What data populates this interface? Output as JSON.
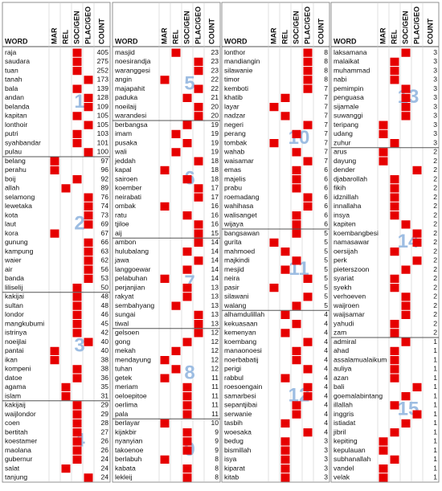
{
  "headers": {
    "word": "WORD",
    "columns": [
      "MAR",
      "REL",
      "SOC/GEN",
      "PLAC/GEO"
    ],
    "count": "COUNT"
  },
  "panels": [
    {
      "groups": [
        {
          "label": 1,
          "rows": [
            [
              "raja",
              405,
              2
            ],
            [
              "saudara",
              275,
              2
            ],
            [
              "tuan",
              252,
              2
            ],
            [
              "tanah",
              173,
              3
            ],
            [
              "bala",
              139,
              2
            ],
            [
              "andan",
              128,
              3
            ],
            [
              "belanda",
              109,
              3
            ],
            [
              "kapitan",
              105,
              2
            ],
            [
              "lonthoir",
              105,
              3
            ],
            [
              "putri",
              103,
              2
            ],
            [
              "syahbandar",
              101,
              2
            ],
            [
              "pulau",
              100,
              3
            ]
          ]
        },
        {
          "label": 2,
          "rows": [
            [
              "belang",
              97,
              0
            ],
            [
              "perahu",
              96,
              0
            ],
            [
              "boij",
              92,
              2
            ],
            [
              "allah",
              89,
              1
            ],
            [
              "selamong",
              76,
              3
            ],
            [
              "lewetaka",
              74,
              3
            ],
            [
              "kota",
              73,
              3
            ],
            [
              "laut",
              69,
              3
            ],
            [
              "kora",
              67,
              0
            ],
            [
              "gunung",
              66,
              3
            ],
            [
              "kampung",
              63,
              3
            ],
            [
              "waier",
              62,
              3
            ],
            [
              "air",
              56,
              3
            ],
            [
              "banda",
              53,
              3
            ],
            [
              "liliselij",
              50,
              2
            ]
          ]
        },
        {
          "label": 3,
          "rows": [
            [
              "kakijai",
              48,
              2
            ],
            [
              "sultan",
              48,
              2
            ],
            [
              "londor",
              46,
              2
            ],
            [
              "mangkubumi",
              45,
              2
            ],
            [
              "istrinya",
              42,
              2
            ],
            [
              "noeijlai",
              40,
              3
            ],
            [
              "pantai",
              40,
              0
            ],
            [
              "ikan",
              38,
              0
            ],
            [
              "kompeni",
              38,
              2
            ],
            [
              "datoe",
              36,
              2
            ],
            [
              "agama",
              35,
              1
            ],
            [
              "islam",
              31,
              1
            ]
          ]
        },
        {
          "label": 4,
          "rows": [
            [
              "kakijaij",
              29,
              2
            ],
            [
              "waijlondor",
              29,
              2
            ],
            [
              "coen",
              28,
              2
            ],
            [
              "bertitah",
              27,
              2
            ],
            [
              "koestamer",
              26,
              2
            ],
            [
              "maolana",
              26,
              2
            ],
            [
              "gubernur",
              24,
              2
            ],
            [
              "salat",
              24,
              1
            ],
            [
              "tanjung",
              24,
              3
            ]
          ]
        }
      ]
    },
    {
      "groups": [
        {
          "label": 5,
          "rows": [
            [
              "masjid",
              23,
              1
            ],
            [
              "noesirandja",
              23,
              3
            ],
            [
              "waranggesi",
              23,
              3
            ],
            [
              "angin",
              22,
              0
            ],
            [
              "majapahit",
              22,
              3
            ],
            [
              "paduka",
              21,
              2
            ],
            [
              "noeilaij",
              20,
              3
            ],
            [
              "warandesi",
              20,
              3
            ]
          ]
        },
        {
          "label": 6,
          "rows": [
            [
              "berbangsa",
              19,
              2
            ],
            [
              "imam",
              19,
              1
            ],
            [
              "pusaka",
              19,
              2
            ],
            [
              "wali",
              19,
              1
            ],
            [
              "jeddah",
              18,
              3
            ],
            [
              "kapal",
              18,
              0
            ],
            [
              "sairoen",
              18,
              2
            ],
            [
              "koember",
              17,
              3
            ],
            [
              "neirabati",
              17,
              3
            ],
            [
              "ombak",
              16,
              0
            ],
            [
              "ratu",
              16,
              2
            ],
            [
              "tjiloe",
              16,
              3
            ],
            [
              "aij",
              15,
              3
            ]
          ]
        },
        {
          "label": 7,
          "rows": [
            [
              "ambon",
              14,
              3
            ],
            [
              "hulubalang",
              14,
              2
            ],
            [
              "jawa",
              14,
              3
            ],
            [
              "langgoewar",
              14,
              2
            ],
            [
              "pelabuhan",
              14,
              0
            ],
            [
              "perjanjian",
              13,
              2
            ],
            [
              "rakyat",
              13,
              2
            ],
            [
              "sembahyang",
              13,
              1
            ],
            [
              "sungai",
              13,
              3
            ],
            [
              "tiwal",
              13,
              3
            ]
          ]
        },
        {
          "label": 8,
          "rows": [
            [
              "gelsoen",
              12,
              3
            ],
            [
              "gong",
              12,
              2
            ],
            [
              "mekah",
              12,
              1
            ],
            [
              "mendayung",
              12,
              0
            ],
            [
              "tuhan",
              12,
              1
            ],
            [
              "getek",
              11,
              0
            ],
            [
              "meriam",
              11,
              2
            ],
            [
              "oeloepitoe",
              11,
              2
            ],
            [
              "oerlima",
              11,
              2
            ],
            [
              "pala",
              11,
              2
            ]
          ]
        },
        {
          "label": 9,
          "rows": [
            [
              "berlayar",
              10,
              0
            ],
            [
              "kijakbir",
              9,
              2
            ],
            [
              "nyanyian",
              9,
              2
            ],
            [
              "takoenoe",
              9,
              2
            ],
            [
              "berlabuh",
              8,
              0
            ],
            [
              "kabata",
              8,
              2
            ],
            [
              "lekleij",
              8,
              2
            ]
          ]
        }
      ]
    },
    {
      "groups": [
        {
          "label": 10,
          "rows": [
            [
              "lonthor",
              8,
              3
            ],
            [
              "mandiangin",
              8,
              3
            ],
            [
              "silawanie",
              8,
              3
            ],
            [
              "timor",
              8,
              3
            ],
            [
              "kemboti",
              7,
              3
            ],
            [
              "khatib",
              7,
              1
            ],
            [
              "layar",
              7,
              0
            ],
            [
              "nadzar",
              7,
              1
            ],
            [
              "negeri",
              7,
              3
            ],
            [
              "perang",
              7,
              2
            ],
            [
              "tombak",
              7,
              0
            ],
            [
              "wahab",
              7,
              2
            ],
            [
              "waisamar",
              7,
              3
            ],
            [
              "emas",
              6,
              2
            ],
            [
              "majelis",
              6,
              2
            ],
            [
              "prabu",
              6,
              2
            ],
            [
              "roemadang",
              6,
              3
            ],
            [
              "wahihasa",
              6,
              3
            ],
            [
              "walisanget",
              6,
              2
            ],
            [
              "wijaya",
              6,
              2
            ]
          ]
        },
        {
          "label": 11,
          "rows": [
            [
              "bangsawan",
              5,
              2
            ],
            [
              "gurita",
              5,
              0
            ],
            [
              "mahmoed",
              5,
              1
            ],
            [
              "majkindi",
              5,
              2
            ],
            [
              "mesjid",
              5,
              1
            ],
            [
              "neira",
              5,
              3
            ],
            [
              "pasir",
              5,
              0
            ],
            [
              "silawani",
              5,
              3
            ],
            [
              "walang",
              5,
              2
            ]
          ]
        },
        {
          "label": 12,
          "rows": [
            [
              "alhamdulillah",
              4,
              1
            ],
            [
              "kekuasaan",
              4,
              2
            ],
            [
              "kemenyan",
              4,
              1
            ],
            [
              "koembang",
              4,
              3
            ],
            [
              "manaonoesi",
              4,
              2
            ],
            [
              "noerbabatij",
              4,
              2
            ],
            [
              "perigi",
              4,
              3
            ],
            [
              "rabbul",
              4,
              1
            ],
            [
              "roesoengain",
              4,
              3
            ],
            [
              "samarbesi",
              4,
              3
            ],
            [
              "sepantjibai",
              4,
              2
            ],
            [
              "serwanie",
              4,
              2
            ],
            [
              "tasbih",
              4,
              1
            ],
            [
              "woesaka",
              4,
              3
            ],
            [
              "bedug",
              3,
              1
            ],
            [
              "bismillah",
              3,
              1
            ],
            [
              "isya",
              3,
              1
            ],
            [
              "kiparat",
              3,
              1
            ],
            [
              "kitab",
              3,
              1
            ]
          ]
        }
      ]
    },
    {
      "groups": [
        {
          "label": 13,
          "rows": [
            [
              "laksamana",
              3,
              2
            ],
            [
              "malaikat",
              3,
              1
            ],
            [
              "muhammad",
              3,
              1
            ],
            [
              "nabi",
              3,
              1
            ],
            [
              "pemimpin",
              3,
              2
            ],
            [
              "penguasa",
              3,
              2
            ],
            [
              "sijamale",
              3,
              2
            ],
            [
              "suwanggi",
              3,
              2
            ],
            [
              "teripang",
              3,
              0
            ],
            [
              "udang",
              3,
              0
            ],
            [
              "zuhur",
              3,
              1
            ]
          ]
        },
        {
          "label": 14,
          "rows": [
            [
              "arus",
              2,
              0
            ],
            [
              "dayung",
              2,
              0
            ],
            [
              "dender",
              2,
              3
            ],
            [
              "djabarollah",
              2,
              1
            ],
            [
              "fikih",
              2,
              1
            ],
            [
              "idznillah",
              2,
              1
            ],
            [
              "innallaha",
              2,
              1
            ],
            [
              "insya",
              2,
              1
            ],
            [
              "kapiten",
              2,
              2
            ],
            [
              "koembangbesi",
              2,
              3
            ],
            [
              "namasawar",
              2,
              3
            ],
            [
              "oersijah",
              2,
              1
            ],
            [
              "perk",
              2,
              3
            ],
            [
              "pieterszoon",
              2,
              2
            ],
            [
              "syariat",
              2,
              1
            ],
            [
              "syekh",
              2,
              1
            ],
            [
              "verhoeven",
              2,
              2
            ],
            [
              "waijroen",
              2,
              2
            ],
            [
              "waijsamar",
              2,
              2
            ],
            [
              "yahudi",
              2,
              1
            ],
            [
              "zam",
              2,
              1
            ]
          ]
        },
        {
          "label": 15,
          "rows": [
            [
              "admiral",
              1,
              2
            ],
            [
              "ahad",
              1,
              1
            ],
            [
              "assalamualaikum",
              1,
              1
            ],
            [
              "auliya",
              1,
              1
            ],
            [
              "azan",
              1,
              1
            ],
            [
              "bali",
              1,
              3
            ],
            [
              "goemalabintang",
              1,
              2
            ],
            [
              "illallah",
              1,
              1
            ],
            [
              "inggris",
              1,
              3
            ],
            [
              "istiadat",
              1,
              2
            ],
            [
              "jibril",
              1,
              1
            ],
            [
              "kepiting",
              1,
              0
            ],
            [
              "kepulauan",
              1,
              0
            ],
            [
              "subhanallah",
              1,
              1
            ],
            [
              "vandel",
              1,
              0
            ],
            [
              "velak",
              1,
              0
            ]
          ]
        }
      ]
    }
  ]
}
